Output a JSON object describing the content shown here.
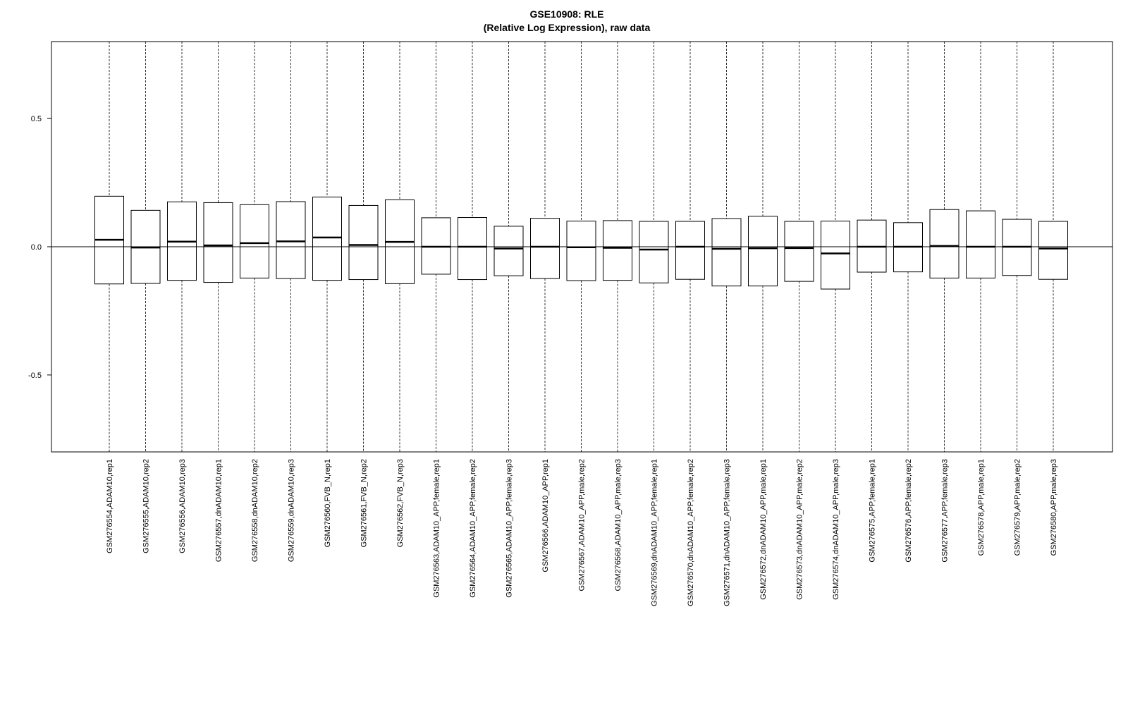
{
  "chart_data": {
    "type": "boxplot",
    "title": "GSE10908: RLE",
    "subtitle": "(Relative Log Expression), raw data",
    "xlabel": "",
    "ylabel": "",
    "ylim": [
      -0.8,
      0.8
    ],
    "yticks": [
      -0.5,
      0.0,
      0.5
    ],
    "ytick_labels": [
      "-0.5",
      "0.0",
      "0.5"
    ],
    "reference_line": 0.0,
    "grid": false,
    "whiskers_extend_beyond_view": true,
    "categories": [
      "GSM276554,ADAM10,rep1",
      "GSM276555,ADAM10,rep2",
      "GSM276556,ADAM10,rep3",
      "GSM276557,dnADAM10,rep1",
      "GSM276558,dnADAM10,rep2",
      "GSM276559,dnADAM10,rep3",
      "GSM276560,FVB_N,rep1",
      "GSM276561,FVB_N,rep2",
      "GSM276562,FVB_N,rep3",
      "GSM276563,ADAM10_APP,female,rep1",
      "GSM276564,ADAM10_APP,female,rep2",
      "GSM276565,ADAM10_APP,female,rep3",
      "GSM276566,ADAM10_APP,rep1",
      "GSM276567,ADAM10_APP,male,rep2",
      "GSM276568,ADAM10_APP,male,rep3",
      "GSM276569,dnADAM10_APP,female,rep1",
      "GSM276570,dnADAM10_APP,female,rep2",
      "GSM276571,dnADAM10_APP,female,rep3",
      "GSM276572,dnADAM10_APP,male,rep1",
      "GSM276573,dnADAM10_APP,male,rep2",
      "GSM276574,dnADAM10_APP,male,rep3",
      "GSM276575,APP,female,rep1",
      "GSM276576,APP,female,rep2",
      "GSM276577,APP,female,rep3",
      "GSM276578,APP,male,rep1",
      "GSM276579,APP,male,rep2",
      "GSM276580,APP,male,rep3"
    ],
    "boxes": [
      {
        "q1": -0.145,
        "median": 0.027,
        "q3": 0.197
      },
      {
        "q1": -0.143,
        "median": -0.003,
        "q3": 0.142
      },
      {
        "q1": -0.131,
        "median": 0.02,
        "q3": 0.175
      },
      {
        "q1": -0.139,
        "median": 0.005,
        "q3": 0.172
      },
      {
        "q1": -0.122,
        "median": 0.014,
        "q3": 0.164
      },
      {
        "q1": -0.124,
        "median": 0.021,
        "q3": 0.176
      },
      {
        "q1": -0.131,
        "median": 0.036,
        "q3": 0.194
      },
      {
        "q1": -0.128,
        "median": 0.007,
        "q3": 0.161
      },
      {
        "q1": -0.144,
        "median": 0.019,
        "q3": 0.183
      },
      {
        "q1": -0.107,
        "median": 0.0,
        "q3": 0.113
      },
      {
        "q1": -0.128,
        "median": 0.0,
        "q3": 0.114
      },
      {
        "q1": -0.113,
        "median": -0.007,
        "q3": 0.08
      },
      {
        "q1": -0.124,
        "median": 0.0,
        "q3": 0.111
      },
      {
        "q1": -0.132,
        "median": -0.002,
        "q3": 0.1
      },
      {
        "q1": -0.131,
        "median": -0.004,
        "q3": 0.102
      },
      {
        "q1": -0.141,
        "median": -0.011,
        "q3": 0.099
      },
      {
        "q1": -0.127,
        "median": 0.0,
        "q3": 0.099
      },
      {
        "q1": -0.153,
        "median": -0.008,
        "q3": 0.11
      },
      {
        "q1": -0.153,
        "median": -0.006,
        "q3": 0.119
      },
      {
        "q1": -0.135,
        "median": -0.005,
        "q3": 0.099
      },
      {
        "q1": -0.165,
        "median": -0.026,
        "q3": 0.1
      },
      {
        "q1": -0.099,
        "median": 0.0,
        "q3": 0.104
      },
      {
        "q1": -0.098,
        "median": 0.0,
        "q3": 0.094
      },
      {
        "q1": -0.122,
        "median": 0.003,
        "q3": 0.145
      },
      {
        "q1": -0.122,
        "median": 0.0,
        "q3": 0.14
      },
      {
        "q1": -0.112,
        "median": 0.0,
        "q3": 0.107
      },
      {
        "q1": -0.127,
        "median": -0.007,
        "q3": 0.099
      }
    ]
  }
}
